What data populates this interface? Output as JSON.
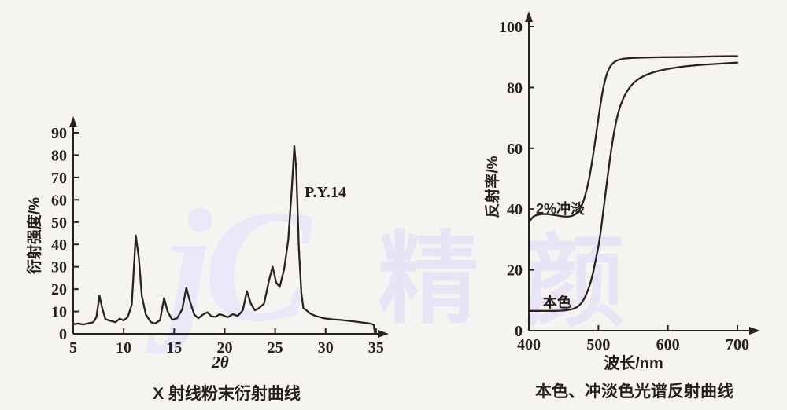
{
  "page": {
    "background": "#f6f4f1",
    "ink": "#29231d"
  },
  "watermark": {
    "logo": "jC",
    "char1": "精",
    "char2": "颜",
    "color": "#e8e4f6"
  },
  "chart_data": [
    {
      "type": "line",
      "title": "X 射线粉末衍射曲线",
      "xlabel": "2θ",
      "ylabel": "衍射强度/%",
      "annotation": "P.Y.14",
      "xlim": [
        5,
        35
      ],
      "ylim": [
        0,
        90
      ],
      "xticks": [
        5,
        10,
        15,
        20,
        25,
        30,
        35
      ],
      "yticks": [
        0,
        10,
        20,
        30,
        40,
        50,
        60,
        70,
        80,
        90
      ],
      "grid": false,
      "legend": false,
      "series": [
        {
          "name": "P.Y.14",
          "points": [
            [
              5,
              4.3
            ],
            [
              5.5,
              4.6
            ],
            [
              6,
              4.2
            ],
            [
              6.5,
              4.7
            ],
            [
              7,
              5.2
            ],
            [
              7.3,
              7.5
            ],
            [
              7.6,
              17
            ],
            [
              7.9,
              11
            ],
            [
              8.2,
              6.5
            ],
            [
              8.7,
              5.8
            ],
            [
              9.2,
              5.2
            ],
            [
              9.6,
              6.8
            ],
            [
              10,
              6
            ],
            [
              10.4,
              7.5
            ],
            [
              10.8,
              13
            ],
            [
              11.2,
              44
            ],
            [
              11.5,
              34
            ],
            [
              11.8,
              17
            ],
            [
              12.2,
              8.5
            ],
            [
              12.7,
              5.2
            ],
            [
              13.1,
              4.6
            ],
            [
              13.6,
              6
            ],
            [
              14,
              16
            ],
            [
              14.35,
              10
            ],
            [
              14.8,
              6.3
            ],
            [
              15.3,
              7
            ],
            [
              15.8,
              11
            ],
            [
              16.2,
              20.5
            ],
            [
              16.6,
              14
            ],
            [
              17,
              8.5
            ],
            [
              17.4,
              7
            ],
            [
              17.9,
              8.8
            ],
            [
              18.3,
              9.6
            ],
            [
              18.7,
              7.8
            ],
            [
              19.1,
              7.6
            ],
            [
              19.5,
              8.8
            ],
            [
              19.9,
              8.2
            ],
            [
              20.3,
              7.4
            ],
            [
              20.8,
              8.8
            ],
            [
              21.3,
              8
            ],
            [
              21.8,
              10.5
            ],
            [
              22.2,
              19
            ],
            [
              22.6,
              13.5
            ],
            [
              23,
              10.5
            ],
            [
              23.4,
              11.5
            ],
            [
              23.9,
              13.5
            ],
            [
              24.4,
              24
            ],
            [
              24.75,
              30
            ],
            [
              25.1,
              23
            ],
            [
              25.45,
              21
            ],
            [
              25.9,
              29
            ],
            [
              26.3,
              42
            ],
            [
              26.65,
              65
            ],
            [
              26.9,
              84
            ],
            [
              27.1,
              73
            ],
            [
              27.35,
              38
            ],
            [
              27.6,
              18
            ],
            [
              27.8,
              11.5
            ],
            [
              28.1,
              10.5
            ],
            [
              28.5,
              9
            ],
            [
              29,
              8
            ],
            [
              29.8,
              7
            ],
            [
              30.6,
              6.5
            ],
            [
              31.5,
              6.2
            ],
            [
              32.3,
              5.8
            ],
            [
              33.2,
              5.3
            ],
            [
              34,
              4.8
            ],
            [
              34.5,
              4.5
            ],
            [
              34.78,
              4
            ],
            [
              34.85,
              0.8
            ]
          ]
        }
      ]
    },
    {
      "type": "line",
      "title": "本色、冲淡色光谱反射曲线",
      "xlabel": "波长/nm",
      "ylabel": "反射率/%",
      "xlim": [
        400,
        700
      ],
      "ylim": [
        0,
        100
      ],
      "xticks": [
        400,
        500,
        600,
        700
      ],
      "yticks": [
        0,
        20,
        40,
        60,
        80,
        100
      ],
      "grid": false,
      "legend": false,
      "series": [
        {
          "name": "2%冲淡",
          "points": [
            [
              400,
              35.5
            ],
            [
              404,
              37
            ],
            [
              408,
              37.8
            ],
            [
              416,
              38.3
            ],
            [
              424,
              38.4
            ],
            [
              432,
              38.2
            ],
            [
              440,
              37.9
            ],
            [
              448,
              37.6
            ],
            [
              456,
              37.5
            ],
            [
              462,
              37.7
            ],
            [
              468,
              38.4
            ],
            [
              474,
              40
            ],
            [
              480,
              43.5
            ],
            [
              486,
              49
            ],
            [
              492,
              57
            ],
            [
              497,
              65
            ],
            [
              502,
              73
            ],
            [
              507,
              80
            ],
            [
              512,
              84.5
            ],
            [
              517,
              87
            ],
            [
              523,
              88.5
            ],
            [
              530,
              89.2
            ],
            [
              540,
              89.6
            ],
            [
              555,
              89.8
            ],
            [
              575,
              89.9
            ],
            [
              600,
              90
            ],
            [
              630,
              90
            ],
            [
              660,
              90.2
            ],
            [
              700,
              90.3
            ]
          ]
        },
        {
          "name": "本色",
          "points": [
            [
              400,
              6.5
            ],
            [
              415,
              6.5
            ],
            [
              430,
              6.5
            ],
            [
              445,
              6.5
            ],
            [
              458,
              6.8
            ],
            [
              468,
              7.5
            ],
            [
              476,
              9
            ],
            [
              483,
              12
            ],
            [
              490,
              16.5
            ],
            [
              496,
              23
            ],
            [
              502,
              30
            ],
            [
              508,
              41
            ],
            [
              514,
              52
            ],
            [
              520,
              62
            ],
            [
              526,
              69.5
            ],
            [
              532,
              74.5
            ],
            [
              540,
              78.5
            ],
            [
              550,
              81.5
            ],
            [
              562,
              83.5
            ],
            [
              578,
              85
            ],
            [
              600,
              86.2
            ],
            [
              625,
              87
            ],
            [
              655,
              87.6
            ],
            [
              700,
              88.2
            ]
          ]
        }
      ]
    }
  ]
}
